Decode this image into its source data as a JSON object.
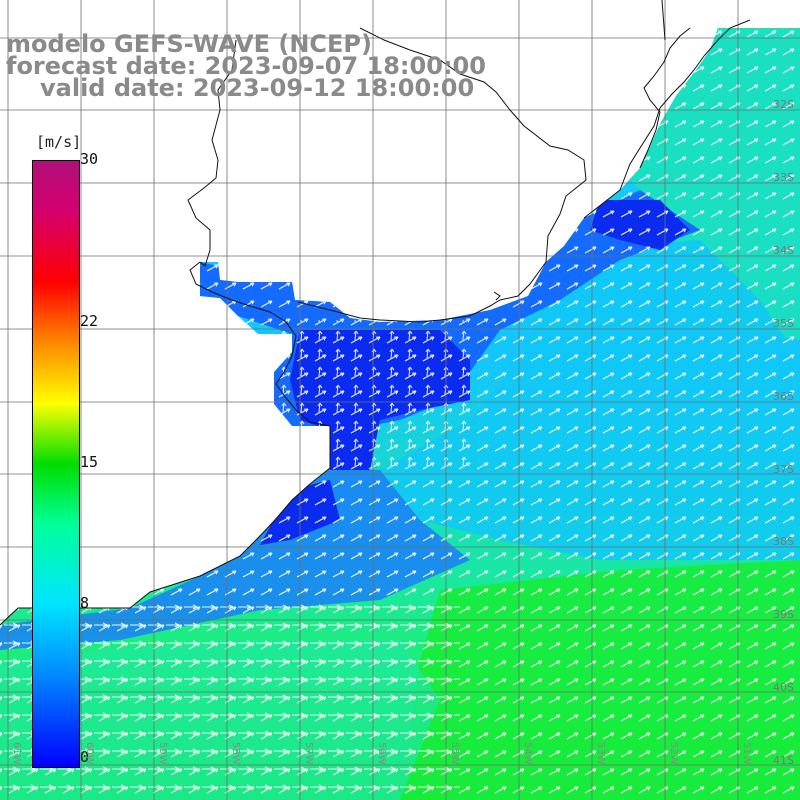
{
  "header": {
    "line1": "modelo GEFS-WAVE (NCEP)",
    "line2": "forecast date: 2023-09-07 18:00:00",
    "line3": "valid date: 2023-09-12 18:00:00"
  },
  "colorbar": {
    "unit": "[m/s]",
    "range": [
      0,
      30
    ],
    "ticks": [
      {
        "label": "30",
        "value": 30
      },
      {
        "label": "22",
        "value": 22
      },
      {
        "label": "15",
        "value": 15
      },
      {
        "label": "8",
        "value": 8
      },
      {
        "label": "0",
        "value": 0
      }
    ],
    "colors": [
      "#0000ff",
      "#0088ff",
      "#00e5ff",
      "#00ff99",
      "#00dd00",
      "#ffff00",
      "#ff8800",
      "#ff0000",
      "#d40070"
    ]
  },
  "map": {
    "lat_labels": [
      "32S",
      "33S",
      "34S",
      "35S",
      "36S",
      "37S",
      "38S",
      "39S",
      "40S",
      "41S"
    ],
    "lon_labels": [
      "61W",
      "60W",
      "59W",
      "58W",
      "57W",
      "56W",
      "55W",
      "54W",
      "53W",
      "52W",
      "51W"
    ],
    "ocean_colors": {
      "estuary": "#0a2cf0",
      "shelf_blue": "#1a78ff",
      "mid": "#10c8f6",
      "offshore": "#1ee6b0",
      "south": "#17ec3a"
    }
  }
}
